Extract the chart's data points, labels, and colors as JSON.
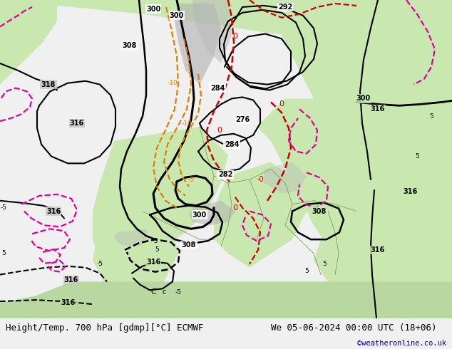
{
  "title_left": "Height/Temp. 700 hPa [gdmp][°C] ECMWF",
  "title_right": "We 05-06-2024 00:00 UTC (18+06)",
  "watermark": "©weatheronline.co.uk",
  "fig_width": 6.34,
  "fig_height": 4.9,
  "dpi": 100,
  "footer_fontsize": 9,
  "footer_text_color": "#000000",
  "watermark_color": "#0000cc",
  "footer_bg": "#f0f0f0",
  "map_bg_color": "#c8c8c8",
  "land_green": "#b8d8a0",
  "land_green2": "#c8e8b0",
  "sea_gray": "#c8c8c8",
  "black": "#000000",
  "orange": "#e08000",
  "red": "#cc0000",
  "pink": "#e000a0",
  "label_fs": 7
}
